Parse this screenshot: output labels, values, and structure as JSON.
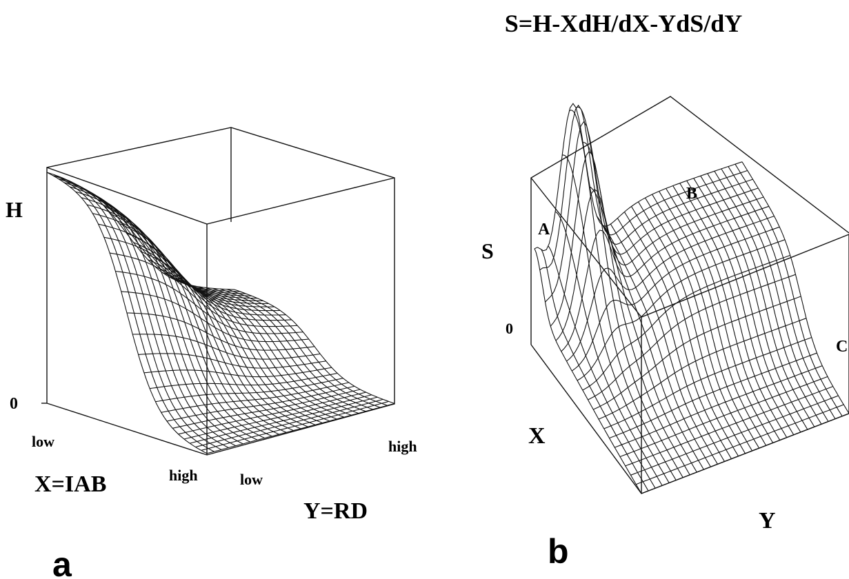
{
  "equation": "S=H-XdH/dX-YdS/dY",
  "panel_a": {
    "panel_label": "a",
    "z_axis_label": "H",
    "z_zero_tick": "0",
    "x_axis_label": "X=IAB",
    "x_low": "low",
    "x_high": "high",
    "y_axis_label": "Y=RD",
    "y_low": "low",
    "y_high": "high"
  },
  "panel_b": {
    "panel_label": "b",
    "z_axis_label": "S",
    "z_zero_tick": "0",
    "x_axis_label": "X",
    "y_axis_label": "Y",
    "region_a": "A",
    "region_b": "B",
    "region_c": "C"
  }
}
